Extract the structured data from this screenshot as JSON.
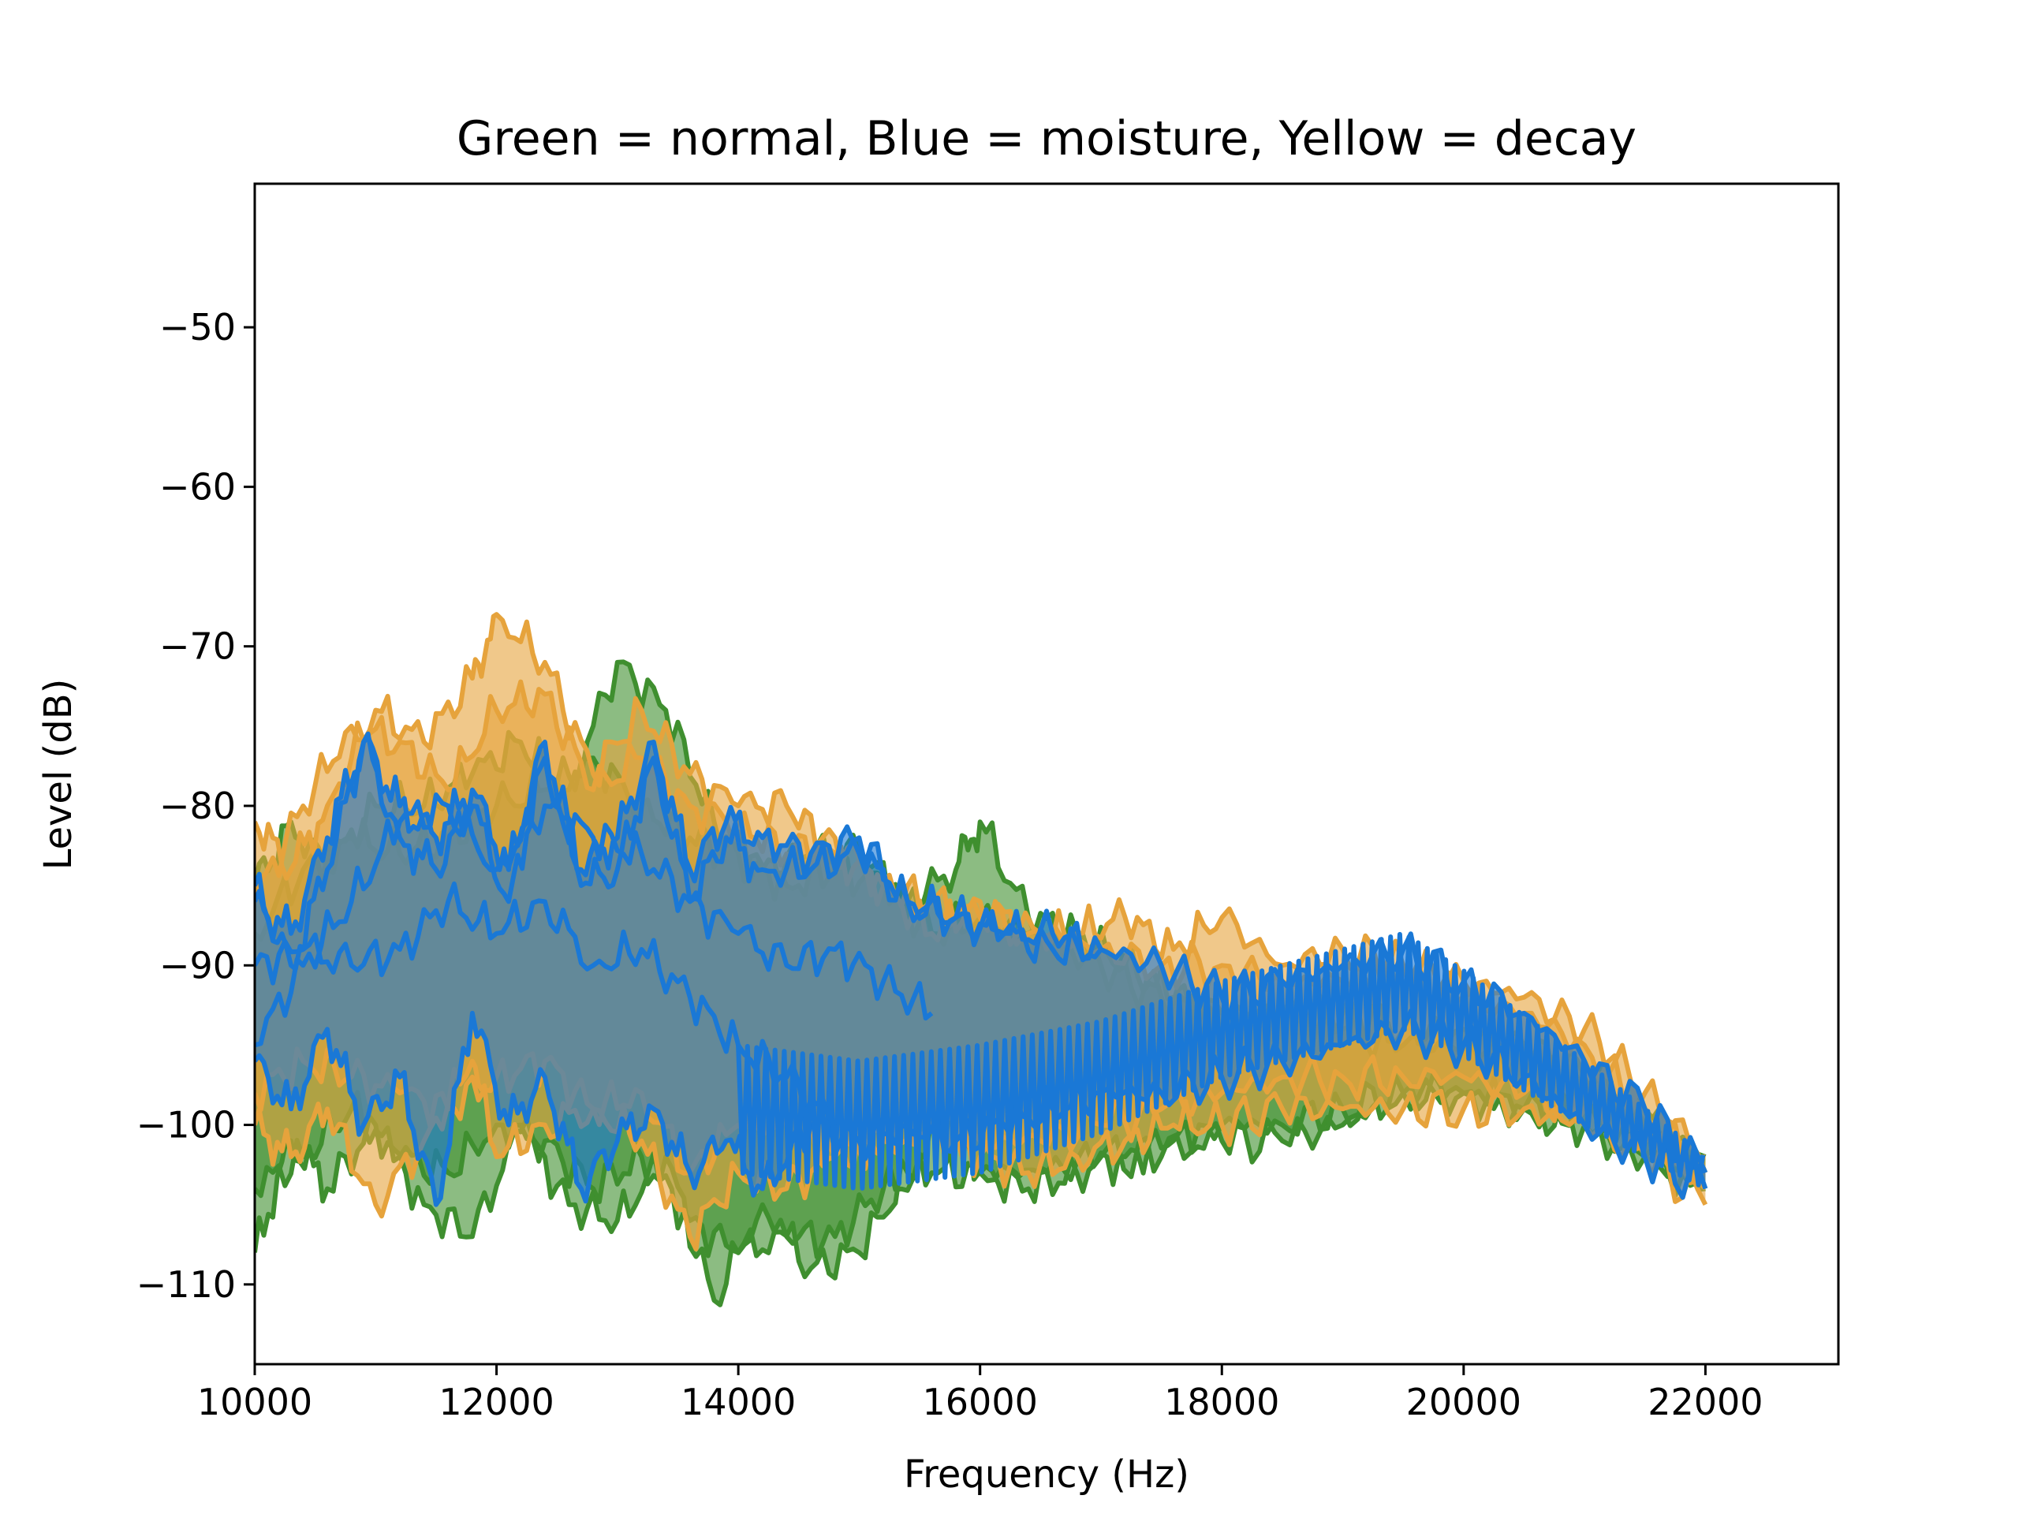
{
  "chart_data": {
    "type": "area",
    "title": "Green = normal, Blue = moisture, Yellow = decay",
    "xlabel": "Frequency (Hz)",
    "ylabel": "Level (dB)",
    "xlim": [
      10000,
      23100
    ],
    "ylim": [
      -115,
      -41
    ],
    "xticks": [
      10000,
      12000,
      14000,
      16000,
      18000,
      20000,
      22000
    ],
    "xtick_labels": [
      "10000",
      "12000",
      "14000",
      "16000",
      "18000",
      "20000",
      "22000"
    ],
    "yticks": [
      -50,
      -60,
      -70,
      -80,
      -90,
      -100,
      -110
    ],
    "ytick_labels": [
      "−50",
      "−60",
      "−70",
      "−80",
      "−90",
      "−100",
      "−110"
    ],
    "grid": false,
    "legend": "none",
    "colors": {
      "normal": "#3f8f2f",
      "moisture": "#1a78d6",
      "decay": "#e6a33c"
    },
    "series": [
      {
        "group": "normal",
        "x": [
          10000,
          10300,
          10600,
          11000,
          11400,
          11800,
          12200,
          12600,
          13000,
          13400,
          13800,
          14200,
          14600,
          15000,
          15400,
          15800,
          16000,
          16400,
          16800,
          17200,
          17600,
          18000,
          18500,
          19000,
          19500,
          20000,
          20500,
          21000,
          21500,
          22000
        ],
        "upper": [
          -85,
          -81,
          -84,
          -80,
          -80,
          -78,
          -76,
          -79,
          -71,
          -74,
          -81,
          -84,
          -83,
          -83,
          -86,
          -84,
          -81,
          -87,
          -88,
          -90,
          -92,
          -94,
          -93,
          -94,
          -95,
          -95,
          -96,
          -98,
          -100,
          -102
        ],
        "lower": [
          -108,
          -101,
          -104,
          -100,
          -105,
          -107,
          -100,
          -105,
          -106,
          -102,
          -111,
          -105,
          -109,
          -108,
          -103,
          -99,
          -103,
          -104,
          -103,
          -102,
          -101,
          -101,
          -101,
          -100,
          -98,
          -98,
          -99,
          -100,
          -102,
          -104
        ]
      },
      {
        "group": "normal",
        "x": [
          10000,
          10400,
          10800,
          11200,
          11600,
          12000,
          12400,
          12800,
          13200,
          13600,
          14000,
          14400,
          14800,
          15200,
          15600,
          16000,
          16500,
          17000,
          17500,
          18000,
          18500,
          19000,
          19500,
          20000,
          20500,
          21000,
          21500,
          22000
        ],
        "upper": [
          -88,
          -84,
          -82,
          -83,
          -82,
          -80,
          -79,
          -77,
          -80,
          -82,
          -83,
          -85,
          -84,
          -85,
          -88,
          -87,
          -88,
          -90,
          -92,
          -93,
          -93,
          -93,
          -94,
          -94,
          -95,
          -97,
          -99,
          -102
        ],
        "lower": [
          -104,
          -102,
          -99,
          -102,
          -103,
          -100,
          -101,
          -104,
          -102,
          -106,
          -108,
          -107,
          -107,
          -104,
          -103,
          -103,
          -103,
          -102,
          -102,
          -100,
          -100,
          -99,
          -98,
          -98,
          -99,
          -100,
          -102,
          -104
        ]
      },
      {
        "group": "decay",
        "x": [
          10000,
          10300,
          10600,
          11000,
          11400,
          11800,
          12000,
          12400,
          12800,
          13200,
          13600,
          14000,
          14400,
          14800,
          15200,
          15600,
          16000,
          16400,
          16800,
          17200,
          17600,
          18000,
          18500,
          19000,
          19500,
          20000,
          20500,
          21000,
          21500,
          22000
        ],
        "upper": [
          -81,
          -84,
          -80,
          -74,
          -76,
          -72,
          -68,
          -71,
          -78,
          -74,
          -78,
          -80,
          -80,
          -83,
          -85,
          -88,
          -86,
          -88,
          -88,
          -87,
          -89,
          -87,
          -90,
          -89,
          -90,
          -91,
          -92,
          -94,
          -98,
          -102
        ],
        "lower": [
          -100,
          -102,
          -99,
          -105,
          -101,
          -96,
          -102,
          -100,
          -99,
          -101,
          -107,
          -103,
          -104,
          -102,
          -101,
          -100,
          -102,
          -103,
          -102,
          -101,
          -100,
          -100,
          -99,
          -99,
          -99,
          -99,
          -99,
          -100,
          -102,
          -105
        ]
      },
      {
        "group": "decay",
        "x": [
          10000,
          10400,
          10800,
          11200,
          11600,
          12000,
          12400,
          12800,
          13200,
          13600,
          14000,
          14400,
          14800,
          15200,
          15600,
          16000,
          16500,
          17000,
          17500,
          18000,
          18500,
          19000,
          19500,
          20000,
          20500,
          21000,
          21500,
          22000
        ],
        "upper": [
          -86,
          -80,
          -75,
          -76,
          -79,
          -74,
          -73,
          -79,
          -77,
          -80,
          -81,
          -83,
          -82,
          -85,
          -86,
          -87,
          -88,
          -89,
          -90,
          -90,
          -91,
          -91,
          -91,
          -92,
          -93,
          -95,
          -99,
          -103
        ],
        "lower": [
          -98,
          -96,
          -97,
          -98,
          -99,
          -97,
          -96,
          -99,
          -98,
          -103,
          -100,
          -100,
          -102,
          -101,
          -100,
          -101,
          -101,
          -100,
          -99,
          -98,
          -97,
          -97,
          -97,
          -97,
          -98,
          -99,
          -101,
          -104
        ]
      },
      {
        "group": "moisture",
        "x": [
          10000,
          10300,
          10600,
          10900,
          11200,
          11500,
          11800,
          12100,
          12400,
          12700,
          13000,
          13300,
          13600,
          13900,
          14200,
          14600,
          15000,
          15400,
          15800,
          16200,
          16600,
          17000,
          17500,
          18000,
          18500,
          19000,
          19500,
          20000,
          20500,
          21000,
          21500,
          22000
        ],
        "upper": [
          -86,
          -88,
          -82,
          -76,
          -80,
          -82,
          -79,
          -84,
          -76,
          -84,
          -82,
          -76,
          -84,
          -81,
          -82,
          -83,
          -82,
          -86,
          -87,
          -88,
          -88,
          -89,
          -90,
          -92,
          -91,
          -90,
          -89,
          -91,
          -93,
          -96,
          -99,
          -103
        ],
        "lower": [
          -96,
          -99,
          -94,
          -100,
          -97,
          -105,
          -93,
          -100,
          -97,
          -104,
          -101,
          -99,
          -103,
          -101,
          -104,
          -100,
          -101,
          -100,
          -101,
          -100,
          -99,
          -98,
          -98,
          -97,
          -96,
          -95,
          -94,
          -95,
          -97,
          -100,
          -102,
          -104
        ]
      }
    ],
    "lines": [
      {
        "group": "moisture",
        "x": [
          10000,
          10300,
          10600,
          10900,
          11200,
          11500,
          11800,
          12100,
          12400,
          12700,
          13000,
          13300,
          13600,
          13900,
          14200,
          14600,
          15000,
          15400,
          15800,
          16200,
          16600,
          17000
        ],
        "y": [
          -85,
          -90,
          -84,
          -76,
          -82,
          -84,
          -80,
          -86,
          -77,
          -85,
          -84,
          -77,
          -86,
          -82,
          -84,
          -84,
          -83,
          -86,
          -87,
          -88,
          -89,
          -89
        ]
      },
      {
        "group": "moisture",
        "x": [
          10000,
          10400,
          10800,
          11200,
          11600,
          12000,
          12400,
          12800,
          13200,
          13600,
          14000,
          14400,
          14800,
          15200,
          15600
        ],
        "y": [
          -95,
          -90,
          -86,
          -81,
          -80,
          -84,
          -80,
          -82,
          -83,
          -86,
          -88,
          -90,
          -89,
          -91,
          -93
        ]
      },
      {
        "group": "moisture",
        "x": [
          10000,
          10400,
          10800,
          11200,
          11600,
          12000,
          12400,
          12800,
          13200,
          13600,
          14000,
          14400,
          14800
        ],
        "y": [
          -90,
          -89,
          -90,
          -89,
          -86,
          -88,
          -86,
          -90,
          -89,
          -92,
          -95,
          -97,
          -100
        ]
      }
    ],
    "oscillating_band": {
      "group": "moisture",
      "x_range": [
        14000,
        22000
      ],
      "center": [
        [
          14000,
          -99
        ],
        [
          15000,
          -100
        ],
        [
          16000,
          -99
        ],
        [
          17000,
          -97
        ],
        [
          18000,
          -94
        ],
        [
          19000,
          -92
        ],
        [
          19500,
          -91
        ],
        [
          20000,
          -93
        ],
        [
          21000,
          -98
        ],
        [
          22000,
          -103
        ]
      ],
      "half_width": [
        [
          14000,
          4
        ],
        [
          16000,
          4
        ],
        [
          18000,
          3
        ],
        [
          19500,
          3
        ],
        [
          21000,
          2
        ],
        [
          22000,
          1
        ]
      ]
    }
  }
}
